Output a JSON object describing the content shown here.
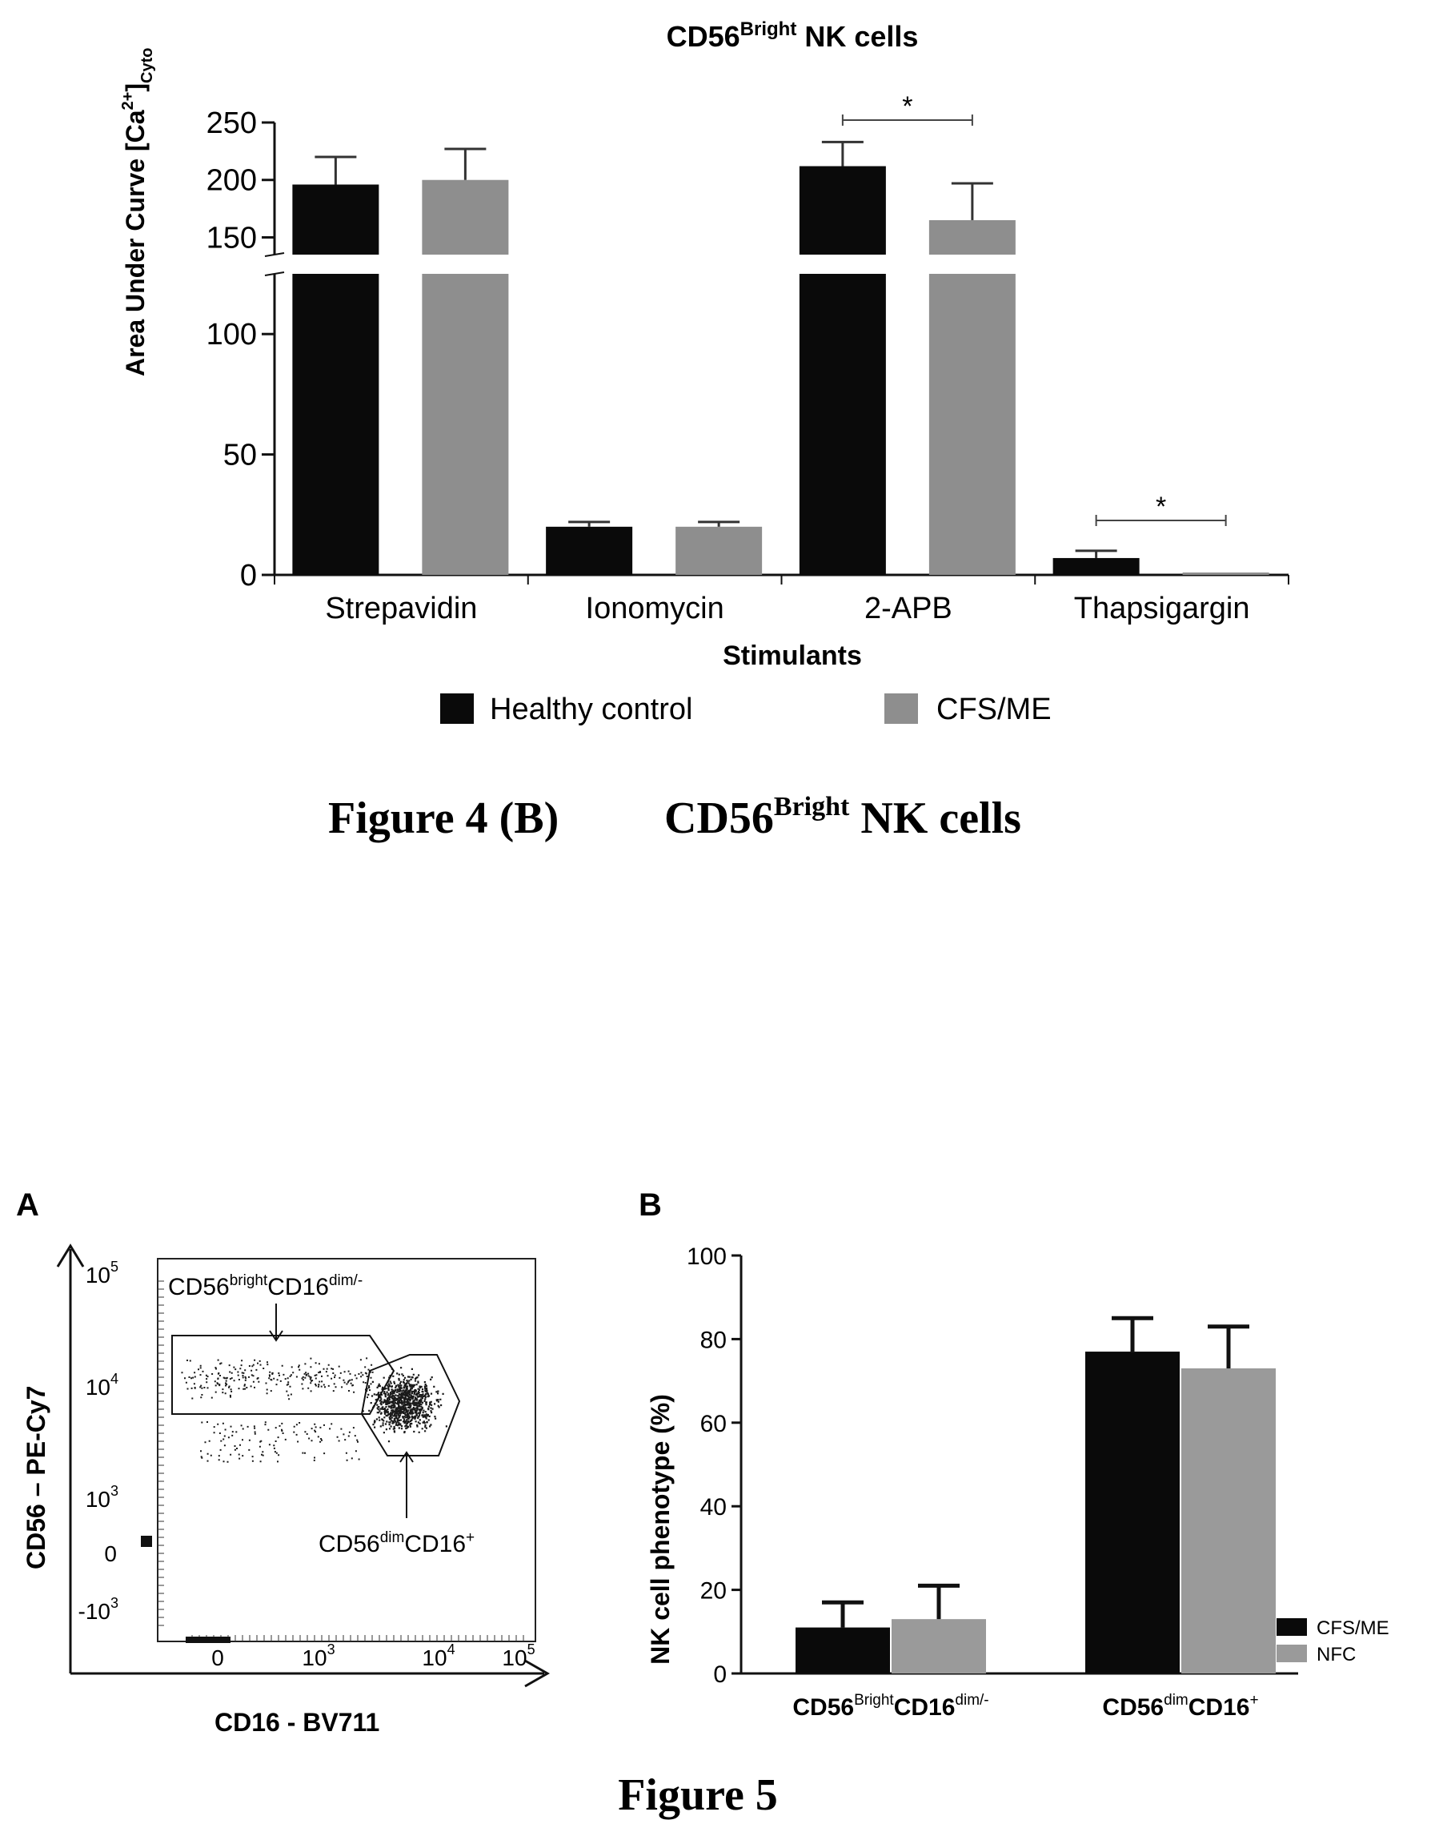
{
  "figure4b": {
    "caption_prefix": "Figure 4 (B)",
    "caption_main": "CD56",
    "caption_sup": "Bright",
    "caption_tail": " NK cells",
    "chart_data": {
      "type": "bar",
      "title_main": "CD56",
      "title_sup": "Bright",
      "title_tail": "  NK cells",
      "ylabel_main": "Area Under Curve [Ca",
      "ylabel_sup": "2+",
      "ylabel_close": "]",
      "ylabel_sub": "Cyto",
      "xlabel": "Stimulants",
      "categories": [
        "Strepavidin",
        "Ionomycin",
        "2-APB",
        "Thapsigargin"
      ],
      "series": [
        {
          "name": "Healthy control",
          "color": "#0a0a0a",
          "values": [
            196,
            20,
            212,
            7
          ],
          "errors": [
            24,
            2,
            21,
            3
          ]
        },
        {
          "name": "CFS/ME",
          "color": "#8e8e8e",
          "values": [
            200,
            20,
            165,
            1
          ],
          "errors": [
            27,
            2,
            32,
            0
          ]
        }
      ],
      "axis_break": {
        "lower": [
          0,
          125
        ],
        "upper": [
          135,
          250
        ]
      },
      "yticks_lower": [
        "0",
        "50",
        "100"
      ],
      "yticks_lower_values": [
        0,
        50,
        100
      ],
      "yticks_upper": [
        "150",
        "200",
        "250"
      ],
      "yticks_upper_values": [
        150,
        200,
        250
      ],
      "significance": [
        {
          "category": "2-APB",
          "label": "*"
        },
        {
          "category": "Thapsigargin",
          "label": "*"
        }
      ],
      "legend_position": "bottom"
    }
  },
  "figure5": {
    "caption": "Figure 5",
    "panelA": {
      "label": "A",
      "chart_data": {
        "type": "scatter",
        "description_type": "flow cytometry dot plot",
        "ylabel": "CD56 – PE-Cy7",
        "xlabel": "CD16  -  BV711",
        "yticks": [
          {
            "base": "10",
            "exp": "5"
          },
          {
            "base": "10",
            "exp": "4"
          },
          {
            "base": "10",
            "exp": "3"
          },
          {
            "base": "0",
            "exp": ""
          },
          {
            "base": "-10",
            "exp": "3"
          }
        ],
        "xticks": [
          {
            "base": "0",
            "exp": ""
          },
          {
            "base": "10",
            "exp": "3"
          },
          {
            "base": "10",
            "exp": "4"
          },
          {
            "base": "10",
            "exp": "5"
          }
        ],
        "gates": [
          {
            "main1": "CD56",
            "sup1": "bright",
            "main2": "CD16",
            "sup2": "dim/-"
          },
          {
            "main1": "CD56",
            "sup1": "dim",
            "main2": "CD16",
            "sup2": "+"
          }
        ]
      }
    },
    "panelB": {
      "label": "B",
      "chart_data": {
        "type": "bar",
        "ylabel": "NK cell phenotype (%)",
        "ylim": [
          0,
          100
        ],
        "yticks": [
          "0",
          "20",
          "40",
          "60",
          "80",
          "100"
        ],
        "categories": [
          {
            "main1": "CD56",
            "sup1": "Bright",
            "main2": "CD16",
            "sup2": "dim/-"
          },
          {
            "main1": "CD56",
            "sup1": "dim",
            "main2": "CD16",
            "sup2": "+"
          }
        ],
        "series": [
          {
            "name": "CFS/ME",
            "color": "#0a0a0a",
            "values": [
              11,
              77
            ],
            "errors": [
              6,
              8
            ]
          },
          {
            "name": "NFC",
            "color": "#9a9a9a",
            "values": [
              13,
              73
            ],
            "errors": [
              8,
              10
            ]
          }
        ],
        "legend_position": "bottom-right"
      }
    }
  }
}
